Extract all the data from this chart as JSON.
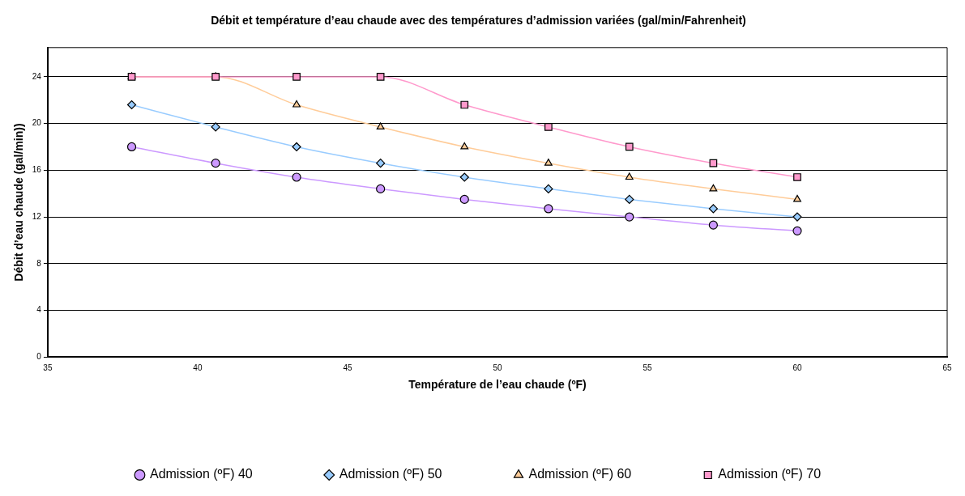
{
  "chart_data": {
    "type": "line",
    "title": "Débit et température d’eau chaude avec des températures d’admission variées (gal/min/Fahrenheit)",
    "xlabel": "Température de l’eau chaude (ºF)",
    "ylabel": "Débit d’eau chaude (gal/min))",
    "x": [
      37.8,
      40.6,
      43.3,
      46.1,
      48.9,
      51.7,
      54.4,
      57.2,
      60
    ],
    "xlim": [
      35,
      65
    ],
    "xticks": [
      35,
      40,
      45,
      50,
      55,
      60,
      65
    ],
    "ylim": [
      0,
      26.5
    ],
    "yticks": [
      0,
      4,
      8,
      12,
      16,
      20,
      24
    ],
    "grid": "y",
    "legend": "bottom",
    "series": [
      {
        "name": "Admission (ºF) 40",
        "color": "#cc99ff",
        "marker": "circle",
        "values": [
          18,
          16.6,
          15.4,
          14.4,
          13.5,
          12.7,
          12,
          11.3,
          10.8
        ]
      },
      {
        "name": "Admission (ºF) 50",
        "color": "#99ccff",
        "marker": "diamond",
        "values": [
          21.6,
          19.7,
          18,
          16.6,
          15.4,
          14.4,
          13.5,
          12.7,
          12
        ]
      },
      {
        "name": "Admission (ºF) 60",
        "color": "#ffcc99",
        "marker": "triangle",
        "values": [
          24,
          24,
          21.6,
          19.7,
          18,
          16.6,
          15.4,
          14.4,
          13.5
        ]
      },
      {
        "name": "Admission (ºF) 70",
        "color": "#ff99cc",
        "marker": "square",
        "values": [
          24,
          24,
          24,
          24,
          21.6,
          19.7,
          18,
          16.6,
          15.4
        ]
      }
    ]
  }
}
